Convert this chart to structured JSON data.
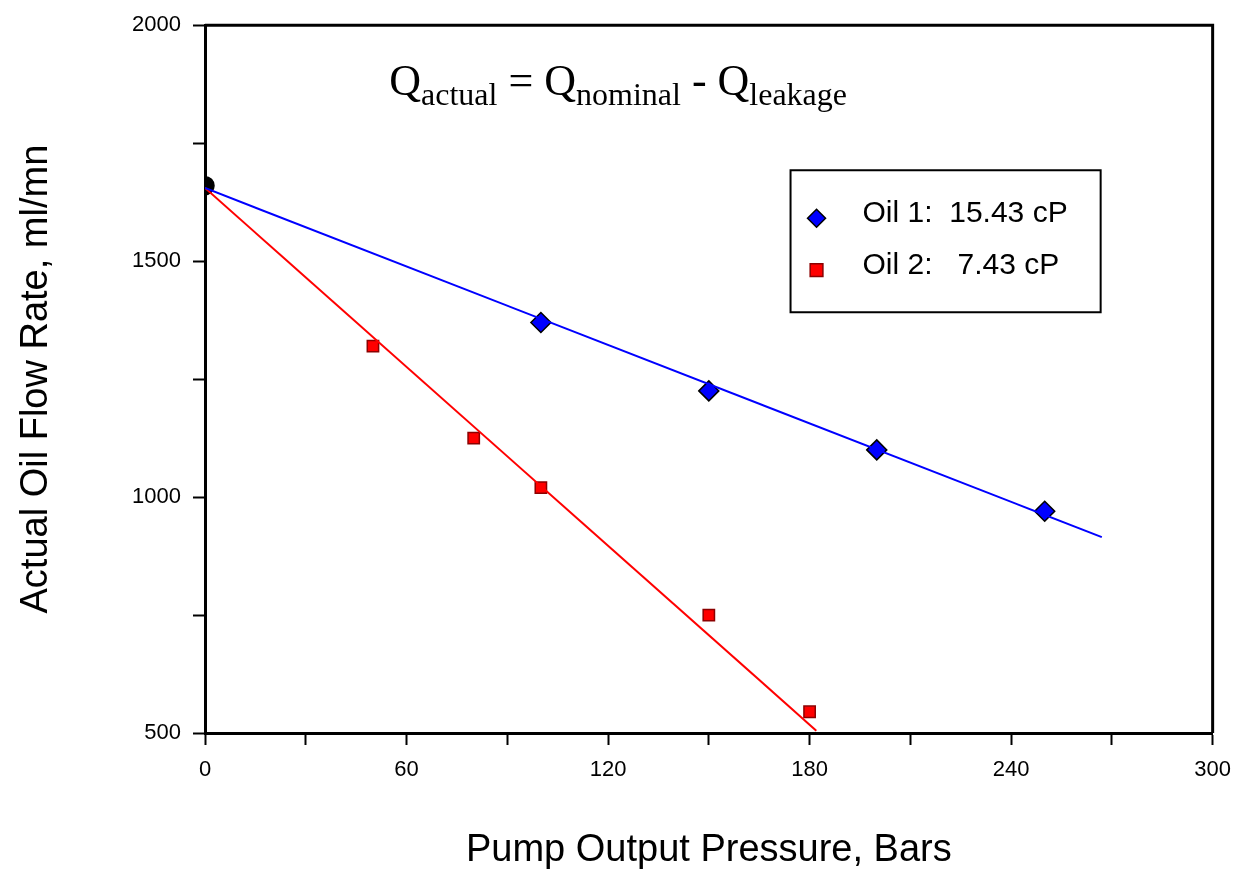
{
  "chart_data": {
    "type": "scatter",
    "xlabel": "Pump Output Pressure, Bars",
    "ylabel": "Actual Oil Flow Rate, ml/mn",
    "annotations": [
      "Q$_{actual}$ = Q$_{nominal}$ - Q$_{leakage}$"
    ],
    "xlim": [
      0,
      300
    ],
    "xticks": [
      0,
      {
        "value": 30,
        "label": null
      },
      60,
      {
        "value": 90,
        "label": null
      },
      120,
      {
        "value": 150,
        "label": null
      },
      180,
      {
        "value": 210,
        "label": null
      },
      240,
      {
        "value": 270,
        "label": null
      },
      300
    ],
    "ylim": [
      500,
      2000
    ],
    "yticks": [
      500,
      {
        "value": 750,
        "label": null
      },
      1000,
      {
        "value": 1250,
        "label": null
      },
      1500,
      {
        "value": 1750,
        "label": null
      },
      2000
    ],
    "grid": false,
    "legend": "top right",
    "series": [
      {
        "type": "line",
        "color": "#0000ff",
        "marker": "none",
        "x": [
          0,
          267
        ],
        "values": [
          1655,
          915
        ]
      },
      {
        "type": "line",
        "color": "#ff0000",
        "marker": "none",
        "x": [
          0,
          182
        ],
        "values": [
          1655,
          505
        ]
      },
      {
        "color": "#000000",
        "marker": "circle",
        "x": [
          0
        ],
        "values": [
          1660
        ]
      },
      {
        "name": "Oil 1:  15.43 cP",
        "color": "#0000ff",
        "marker": "diamond",
        "x": [
          100,
          150,
          200,
          250
        ],
        "values": [
          1370,
          1225,
          1100,
          970
        ]
      },
      {
        "name": "Oil 2:   7.43 cP",
        "color": "#ff0000",
        "marker": "square",
        "x": [
          50,
          80,
          100,
          150,
          180
        ],
        "values": [
          1320,
          1125,
          1020,
          750,
          545
        ]
      }
    ]
  }
}
